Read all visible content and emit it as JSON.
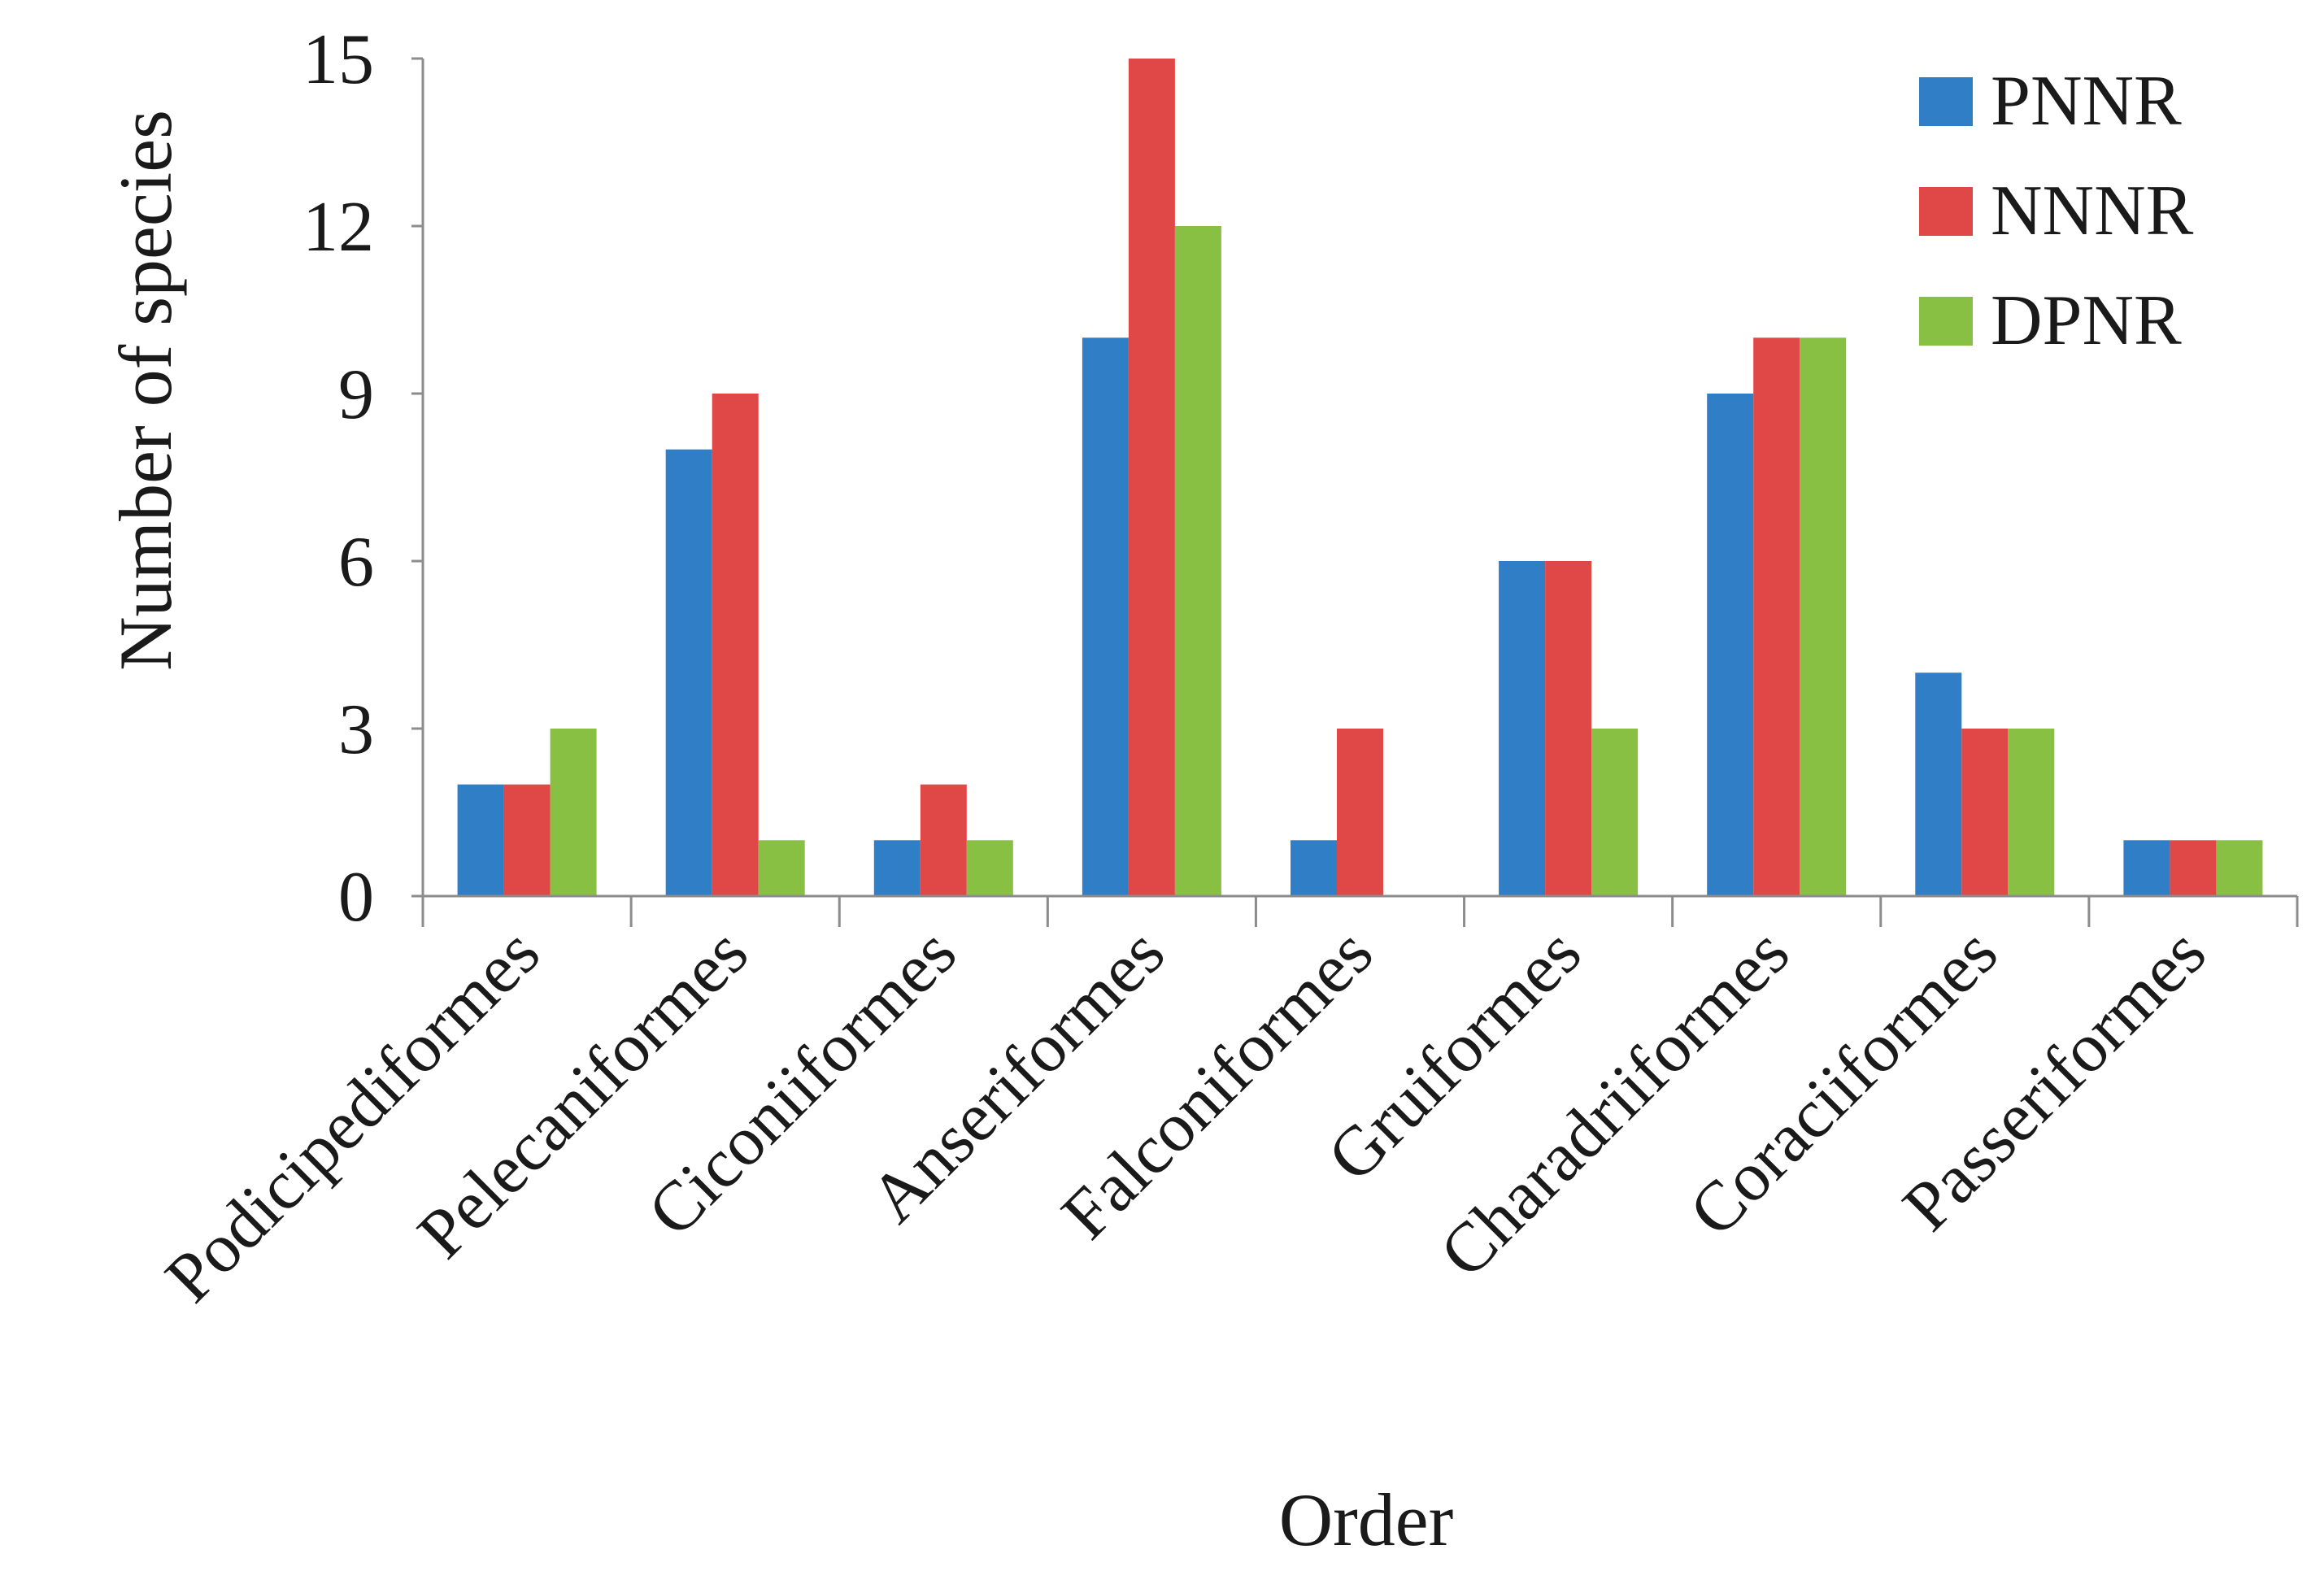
{
  "chart_data": {
    "type": "bar",
    "title": "",
    "xlabel": "Order",
    "ylabel": "Number of species",
    "ylim": [
      0,
      15
    ],
    "yticks": [
      "0",
      "3",
      "6",
      "9",
      "12",
      "15"
    ],
    "grid": false,
    "legend_position": "top-right",
    "categories": [
      "Podicipediformes",
      "Pelecaniformes",
      "Ciconiiformes",
      "Anseriformes",
      "Falconiformes",
      "Gruiformes",
      "Charadriiformes",
      "Coraciiformes",
      "Passeriformes"
    ],
    "series": [
      {
        "name": "PNNR",
        "color": "#2f7ec6",
        "values": [
          2,
          8,
          1,
          10,
          1,
          6,
          9,
          4,
          1
        ]
      },
      {
        "name": "NNNR",
        "color": "#e04848",
        "values": [
          2,
          9,
          2,
          15,
          3,
          6,
          10,
          3,
          1
        ]
      },
      {
        "name": "DPNR",
        "color": "#88c043",
        "values": [
          3,
          1,
          1,
          12,
          0,
          3,
          10,
          3,
          1
        ]
      }
    ]
  }
}
